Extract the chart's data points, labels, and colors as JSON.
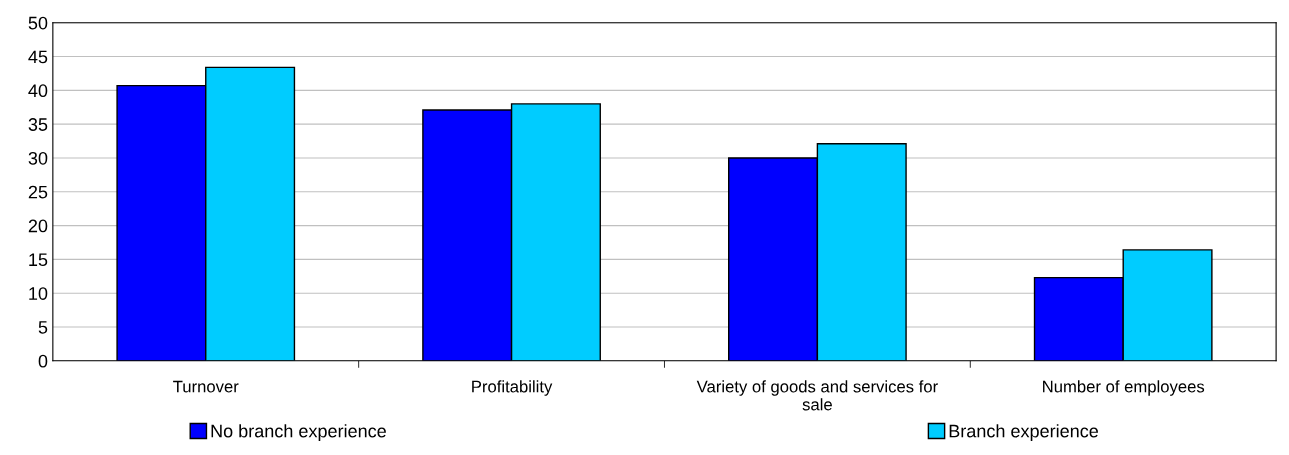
{
  "chart_data": {
    "type": "bar",
    "categories": [
      "Turnover",
      "Profitability",
      "Variety of goods and services for sale",
      "Number of employees"
    ],
    "series": [
      {
        "name": "No branch experience",
        "color": "#0000ff",
        "values": [
          40.7,
          37.1,
          30.0,
          12.3
        ]
      },
      {
        "name": "Branch experience",
        "color": "#00ccff",
        "values": [
          43.4,
          38.0,
          32.1,
          16.4
        ]
      }
    ],
    "ylim": [
      0,
      50
    ],
    "yticks": [
      0,
      5,
      10,
      15,
      20,
      25,
      30,
      35,
      40,
      45,
      50
    ],
    "grid": "y",
    "legend": "bottom"
  }
}
